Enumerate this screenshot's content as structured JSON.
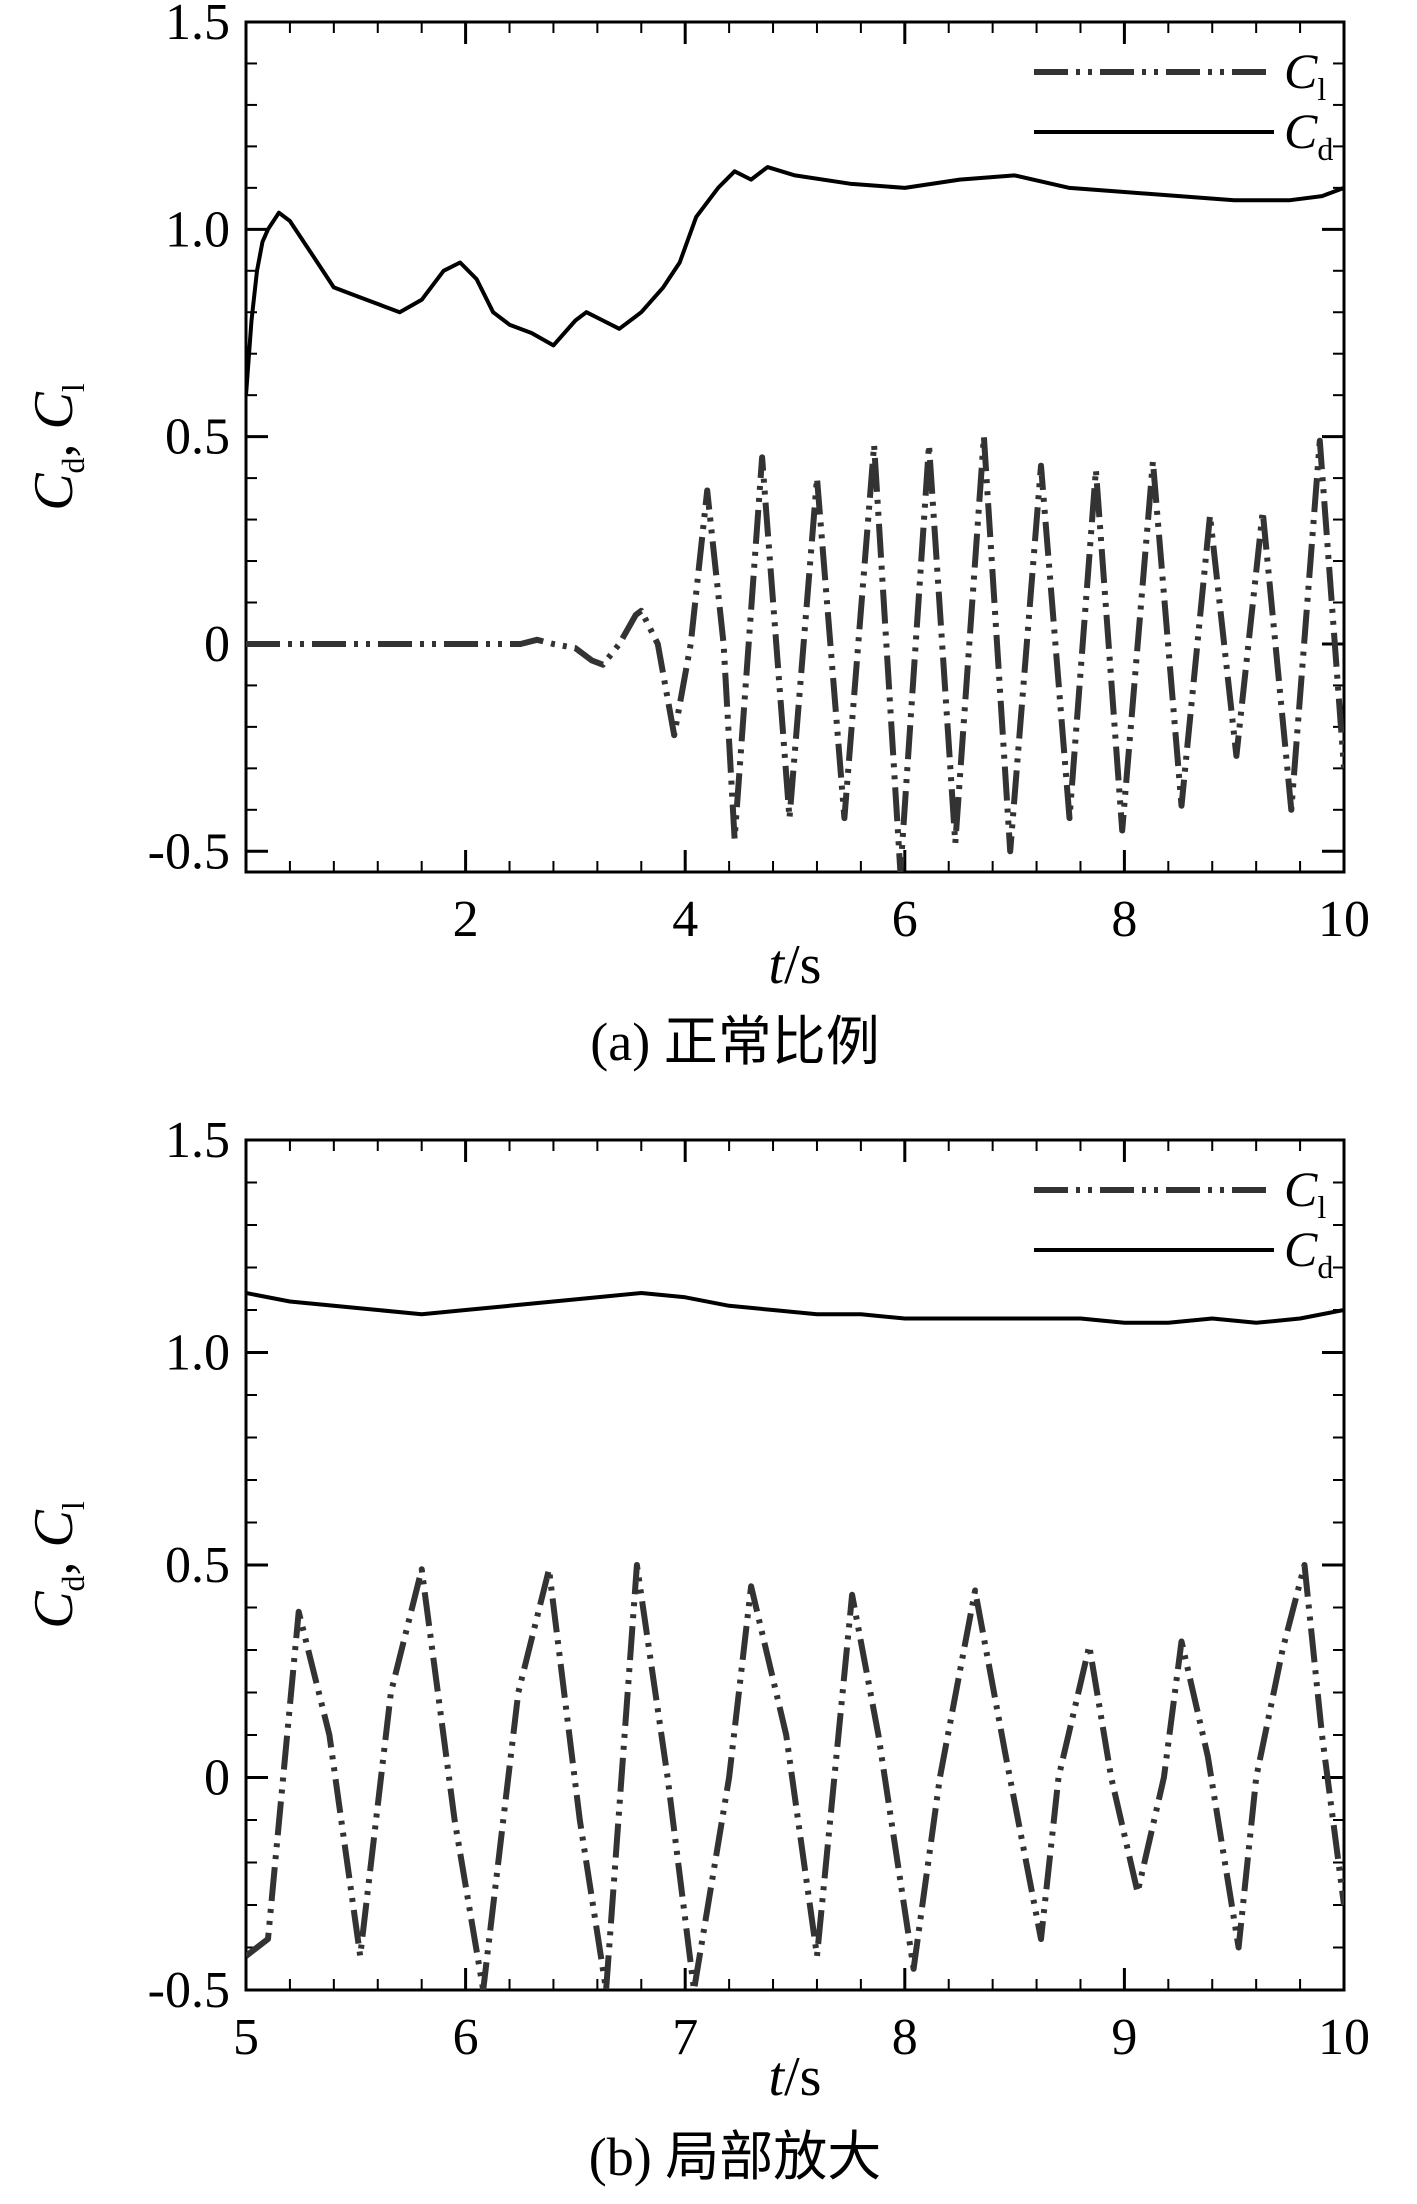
{
  "chart_data": [
    {
      "type": "line",
      "caption": "(a) 正常比例",
      "xlabel": "t/s",
      "ylabel": "Cd, Cl",
      "xlim": [
        0,
        10
      ],
      "ylim": [
        -0.55,
        1.5
      ],
      "x_ticks": [
        "2",
        "4",
        "6",
        "8",
        "10"
      ],
      "x_tick_values": [
        2,
        4,
        6,
        8,
        10
      ],
      "y_ticks": [
        "-0.5",
        "0",
        "0.5",
        "1.0",
        "1.5"
      ],
      "y_tick_values": [
        -0.5,
        0,
        0.5,
        1.0,
        1.5
      ],
      "legend": {
        "position": "top-right",
        "entries": [
          "Cl",
          "Cd"
        ]
      },
      "grid": false,
      "series": [
        {
          "name": "Cd",
          "style": "solid",
          "x": [
            0.0,
            0.05,
            0.1,
            0.15,
            0.2,
            0.3,
            0.4,
            0.6,
            0.8,
            1.0,
            1.2,
            1.4,
            1.6,
            1.8,
            1.95,
            2.1,
            2.25,
            2.4,
            2.6,
            2.8,
            3.0,
            3.1,
            3.25,
            3.4,
            3.6,
            3.8,
            3.95,
            4.1,
            4.3,
            4.45,
            4.6,
            4.75,
            5.0,
            5.5,
            6.0,
            6.5,
            7.0,
            7.5,
            8.0,
            8.5,
            9.0,
            9.5,
            9.8,
            10.0
          ],
          "y": [
            0.6,
            0.78,
            0.9,
            0.97,
            1.0,
            1.04,
            1.02,
            0.94,
            0.86,
            0.84,
            0.82,
            0.8,
            0.83,
            0.9,
            0.92,
            0.88,
            0.8,
            0.77,
            0.75,
            0.72,
            0.78,
            0.8,
            0.78,
            0.76,
            0.8,
            0.86,
            0.92,
            1.03,
            1.1,
            1.14,
            1.12,
            1.15,
            1.13,
            1.11,
            1.1,
            1.12,
            1.13,
            1.1,
            1.09,
            1.08,
            1.07,
            1.07,
            1.08,
            1.1
          ]
        },
        {
          "name": "Cl",
          "style": "dash-dot-dot",
          "x": [
            0.0,
            1.0,
            2.0,
            2.5,
            2.65,
            2.8,
            3.0,
            3.15,
            3.25,
            3.4,
            3.55,
            3.6,
            3.75,
            3.9,
            4.05,
            4.2,
            4.35,
            4.45,
            4.7,
            4.95,
            5.2,
            5.45,
            5.72,
            5.96,
            6.22,
            6.46,
            6.72,
            6.96,
            7.24,
            7.5,
            7.74,
            7.98,
            8.26,
            8.52,
            8.78,
            9.02,
            9.26,
            9.52,
            9.78,
            10.0
          ],
          "y": [
            0.0,
            0.0,
            0.0,
            0.0,
            0.01,
            0.0,
            -0.01,
            -0.04,
            -0.05,
            0.0,
            0.07,
            0.08,
            0.0,
            -0.22,
            0.0,
            0.37,
            0.0,
            -0.47,
            0.45,
            -0.42,
            0.4,
            -0.42,
            0.48,
            -0.55,
            0.48,
            -0.48,
            0.5,
            -0.5,
            0.43,
            -0.42,
            0.42,
            -0.45,
            0.44,
            -0.39,
            0.31,
            -0.27,
            0.32,
            -0.4,
            0.49,
            -0.3
          ]
        }
      ]
    },
    {
      "type": "line",
      "caption": "(b) 局部放大",
      "xlabel": "t/s",
      "ylabel": "Cd, Cl",
      "xlim": [
        5,
        10
      ],
      "ylim": [
        -0.5,
        1.5
      ],
      "x_ticks": [
        "5",
        "6",
        "7",
        "8",
        "9",
        "10"
      ],
      "x_tick_values": [
        5,
        6,
        7,
        8,
        9,
        10
      ],
      "y_ticks": [
        "-0.5",
        "0",
        "0.5",
        "1.0",
        "1.5"
      ],
      "y_tick_values": [
        -0.5,
        0,
        0.5,
        1.0,
        1.5
      ],
      "legend": {
        "position": "top-right",
        "entries": [
          "Cl",
          "Cd"
        ]
      },
      "grid": false,
      "series": [
        {
          "name": "Cd",
          "style": "solid",
          "x": [
            5.0,
            5.2,
            5.4,
            5.6,
            5.8,
            6.0,
            6.2,
            6.4,
            6.6,
            6.8,
            7.0,
            7.2,
            7.4,
            7.6,
            7.8,
            8.0,
            8.2,
            8.4,
            8.6,
            8.8,
            9.0,
            9.2,
            9.4,
            9.6,
            9.8,
            10.0
          ],
          "y": [
            1.14,
            1.12,
            1.11,
            1.1,
            1.09,
            1.1,
            1.11,
            1.12,
            1.13,
            1.14,
            1.13,
            1.11,
            1.1,
            1.09,
            1.09,
            1.08,
            1.08,
            1.08,
            1.08,
            1.08,
            1.07,
            1.07,
            1.08,
            1.07,
            1.08,
            1.1
          ]
        },
        {
          "name": "Cl",
          "style": "dash-dot-dot",
          "x": [
            5.0,
            5.1,
            5.24,
            5.38,
            5.52,
            5.66,
            5.8,
            5.95,
            6.08,
            6.24,
            6.38,
            6.52,
            6.64,
            6.78,
            6.92,
            7.04,
            7.2,
            7.3,
            7.46,
            7.6,
            7.76,
            7.88,
            8.04,
            8.16,
            8.32,
            8.46,
            8.62,
            8.7,
            8.84,
            8.94,
            9.06,
            9.18,
            9.26,
            9.38,
            9.52,
            9.6,
            9.72,
            9.82,
            9.9,
            10.0
          ],
          "y": [
            -0.42,
            -0.38,
            0.39,
            0.1,
            -0.42,
            0.2,
            0.49,
            -0.1,
            -0.5,
            0.2,
            0.49,
            -0.1,
            -0.5,
            0.5,
            0.0,
            -0.5,
            0.0,
            0.45,
            0.1,
            -0.42,
            0.43,
            0.1,
            -0.45,
            0.0,
            0.44,
            0.05,
            -0.38,
            0.0,
            0.31,
            0.0,
            -0.27,
            0.0,
            0.32,
            0.05,
            -0.4,
            0.0,
            0.3,
            0.5,
            0.1,
            -0.3
          ]
        }
      ]
    }
  ]
}
